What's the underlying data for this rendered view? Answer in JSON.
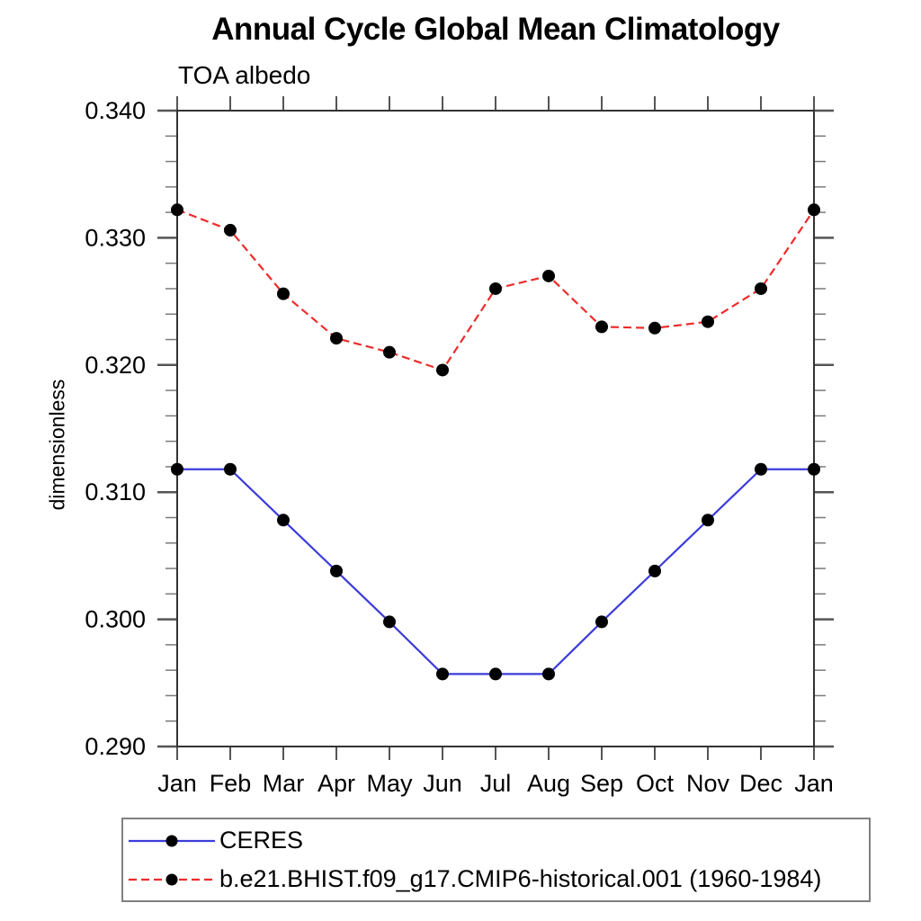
{
  "header": {
    "title": "Annual Cycle Global Mean Climatology",
    "subtitle": "TOA albedo"
  },
  "chart_data": {
    "type": "line",
    "title": "Annual Cycle Global Mean Climatology",
    "subtitle": "TOA albedo",
    "xlabel": "",
    "ylabel": "dimensionless",
    "categories": [
      "Jan",
      "Feb",
      "Mar",
      "Apr",
      "May",
      "Jun",
      "Jul",
      "Aug",
      "Sep",
      "Oct",
      "Nov",
      "Dec",
      "Jan"
    ],
    "ylim": [
      0.29,
      0.34
    ],
    "ytick_major": 0.01,
    "ytick_minor": 0.002,
    "ytick_format_decimals": 3,
    "grid": false,
    "legend_position": "bottom-left-box",
    "series": [
      {
        "name": "CERES",
        "color": "#3c3cdc",
        "style": "solid",
        "marker": "circle",
        "marker_color": "#000000",
        "values": [
          0.3118,
          0.3118,
          0.3078,
          0.3038,
          0.2998,
          0.2957,
          0.2957,
          0.2957,
          0.2998,
          0.3038,
          0.3078,
          0.3118,
          0.3118
        ]
      },
      {
        "name": "b.e21.BHIST.f09_g17.CMIP6-historical.001 (1960-1984)",
        "color": "#ee2b2b",
        "style": "dashed",
        "marker": "circle",
        "marker_color": "#000000",
        "values": [
          0.3322,
          0.3306,
          0.3256,
          0.3221,
          0.321,
          0.3196,
          0.326,
          0.327,
          0.323,
          0.3229,
          0.3234,
          0.326,
          0.3322
        ]
      }
    ],
    "style_colors": {
      "axis": "#333333",
      "ticks": "#555555",
      "legend_border": "#808080",
      "background": "#ffffff",
      "text": "#000000"
    }
  }
}
